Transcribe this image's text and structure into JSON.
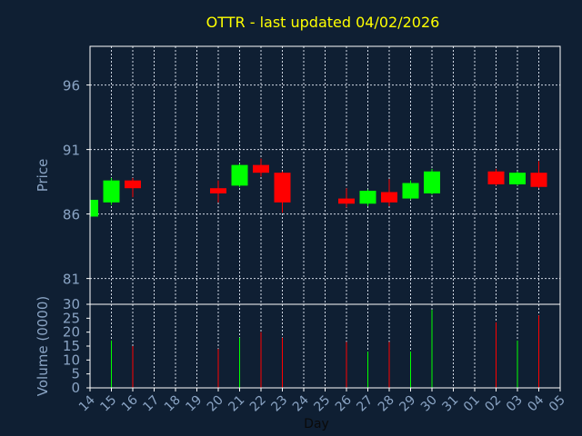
{
  "chart_data": {
    "type": "candlestick",
    "title": "OTTR - last updated 04/02/2026",
    "xlabel": "Day",
    "grid": true,
    "colors": {
      "background": "#0f1f33",
      "frame": "#ffffff",
      "title": "#ffff00",
      "axis_text": "#8aa4c4",
      "up": "#00ff00",
      "down": "#ff0000"
    },
    "x_ticks": [
      "14",
      "15",
      "16",
      "17",
      "18",
      "19",
      "20",
      "21",
      "22",
      "23",
      "24",
      "25",
      "26",
      "27",
      "28",
      "29",
      "30",
      "31",
      "01",
      "02",
      "03",
      "04",
      "05"
    ],
    "price_panel": {
      "ylabel": "Price",
      "ylim": [
        79,
        99
      ],
      "y_ticks": [
        "96",
        "91",
        "86",
        "81"
      ]
    },
    "volume_panel": {
      "ylabel": "Volume (0000)",
      "ylim": [
        0,
        30
      ],
      "y_ticks": [
        "30",
        "25",
        "20",
        "15",
        "10",
        "5",
        "0"
      ]
    },
    "candles": [
      {
        "day": "14",
        "open": 85.8,
        "close": 87.1,
        "high": 87.4,
        "low": 85.6,
        "volume": null
      },
      {
        "day": "15",
        "open": 86.9,
        "close": 88.6,
        "high": 88.8,
        "low": 86.7,
        "volume": 17.0
      },
      {
        "day": "16",
        "open": 88.6,
        "close": 88.0,
        "high": 88.8,
        "low": 87.3,
        "volume": 15.0
      },
      {
        "day": "20",
        "open": 88.0,
        "close": 87.6,
        "high": 88.6,
        "low": 86.9,
        "volume": 14.0
      },
      {
        "day": "21",
        "open": 88.2,
        "close": 89.8,
        "high": 89.9,
        "low": 88.1,
        "volume": 18.0
      },
      {
        "day": "22",
        "open": 89.8,
        "close": 89.2,
        "high": 90.3,
        "low": 88.9,
        "volume": 20.0
      },
      {
        "day": "23",
        "open": 89.2,
        "close": 86.9,
        "high": 89.3,
        "low": 86.1,
        "volume": 18.0
      },
      {
        "day": "26",
        "open": 87.2,
        "close": 86.8,
        "high": 88.0,
        "low": 86.5,
        "volume": 16.5
      },
      {
        "day": "27",
        "open": 86.8,
        "close": 87.8,
        "high": 87.9,
        "low": 86.6,
        "volume": 13.0
      },
      {
        "day": "28",
        "open": 87.7,
        "close": 86.9,
        "high": 88.7,
        "low": 86.6,
        "volume": 16.5
      },
      {
        "day": "29",
        "open": 87.2,
        "close": 88.4,
        "high": 88.6,
        "low": 87.1,
        "volume": 13.0
      },
      {
        "day": "30",
        "open": 87.6,
        "close": 89.3,
        "high": 89.5,
        "low": 87.5,
        "volume": 28.0
      },
      {
        "day": "02",
        "open": 89.3,
        "close": 88.3,
        "high": 89.5,
        "low": 88.2,
        "volume": 23.5
      },
      {
        "day": "03",
        "open": 88.3,
        "close": 89.2,
        "high": 89.3,
        "low": 88.2,
        "volume": 17.0
      },
      {
        "day": "04",
        "open": 89.2,
        "close": 88.1,
        "high": 90.1,
        "low": 88.0,
        "volume": 26.0
      }
    ]
  }
}
